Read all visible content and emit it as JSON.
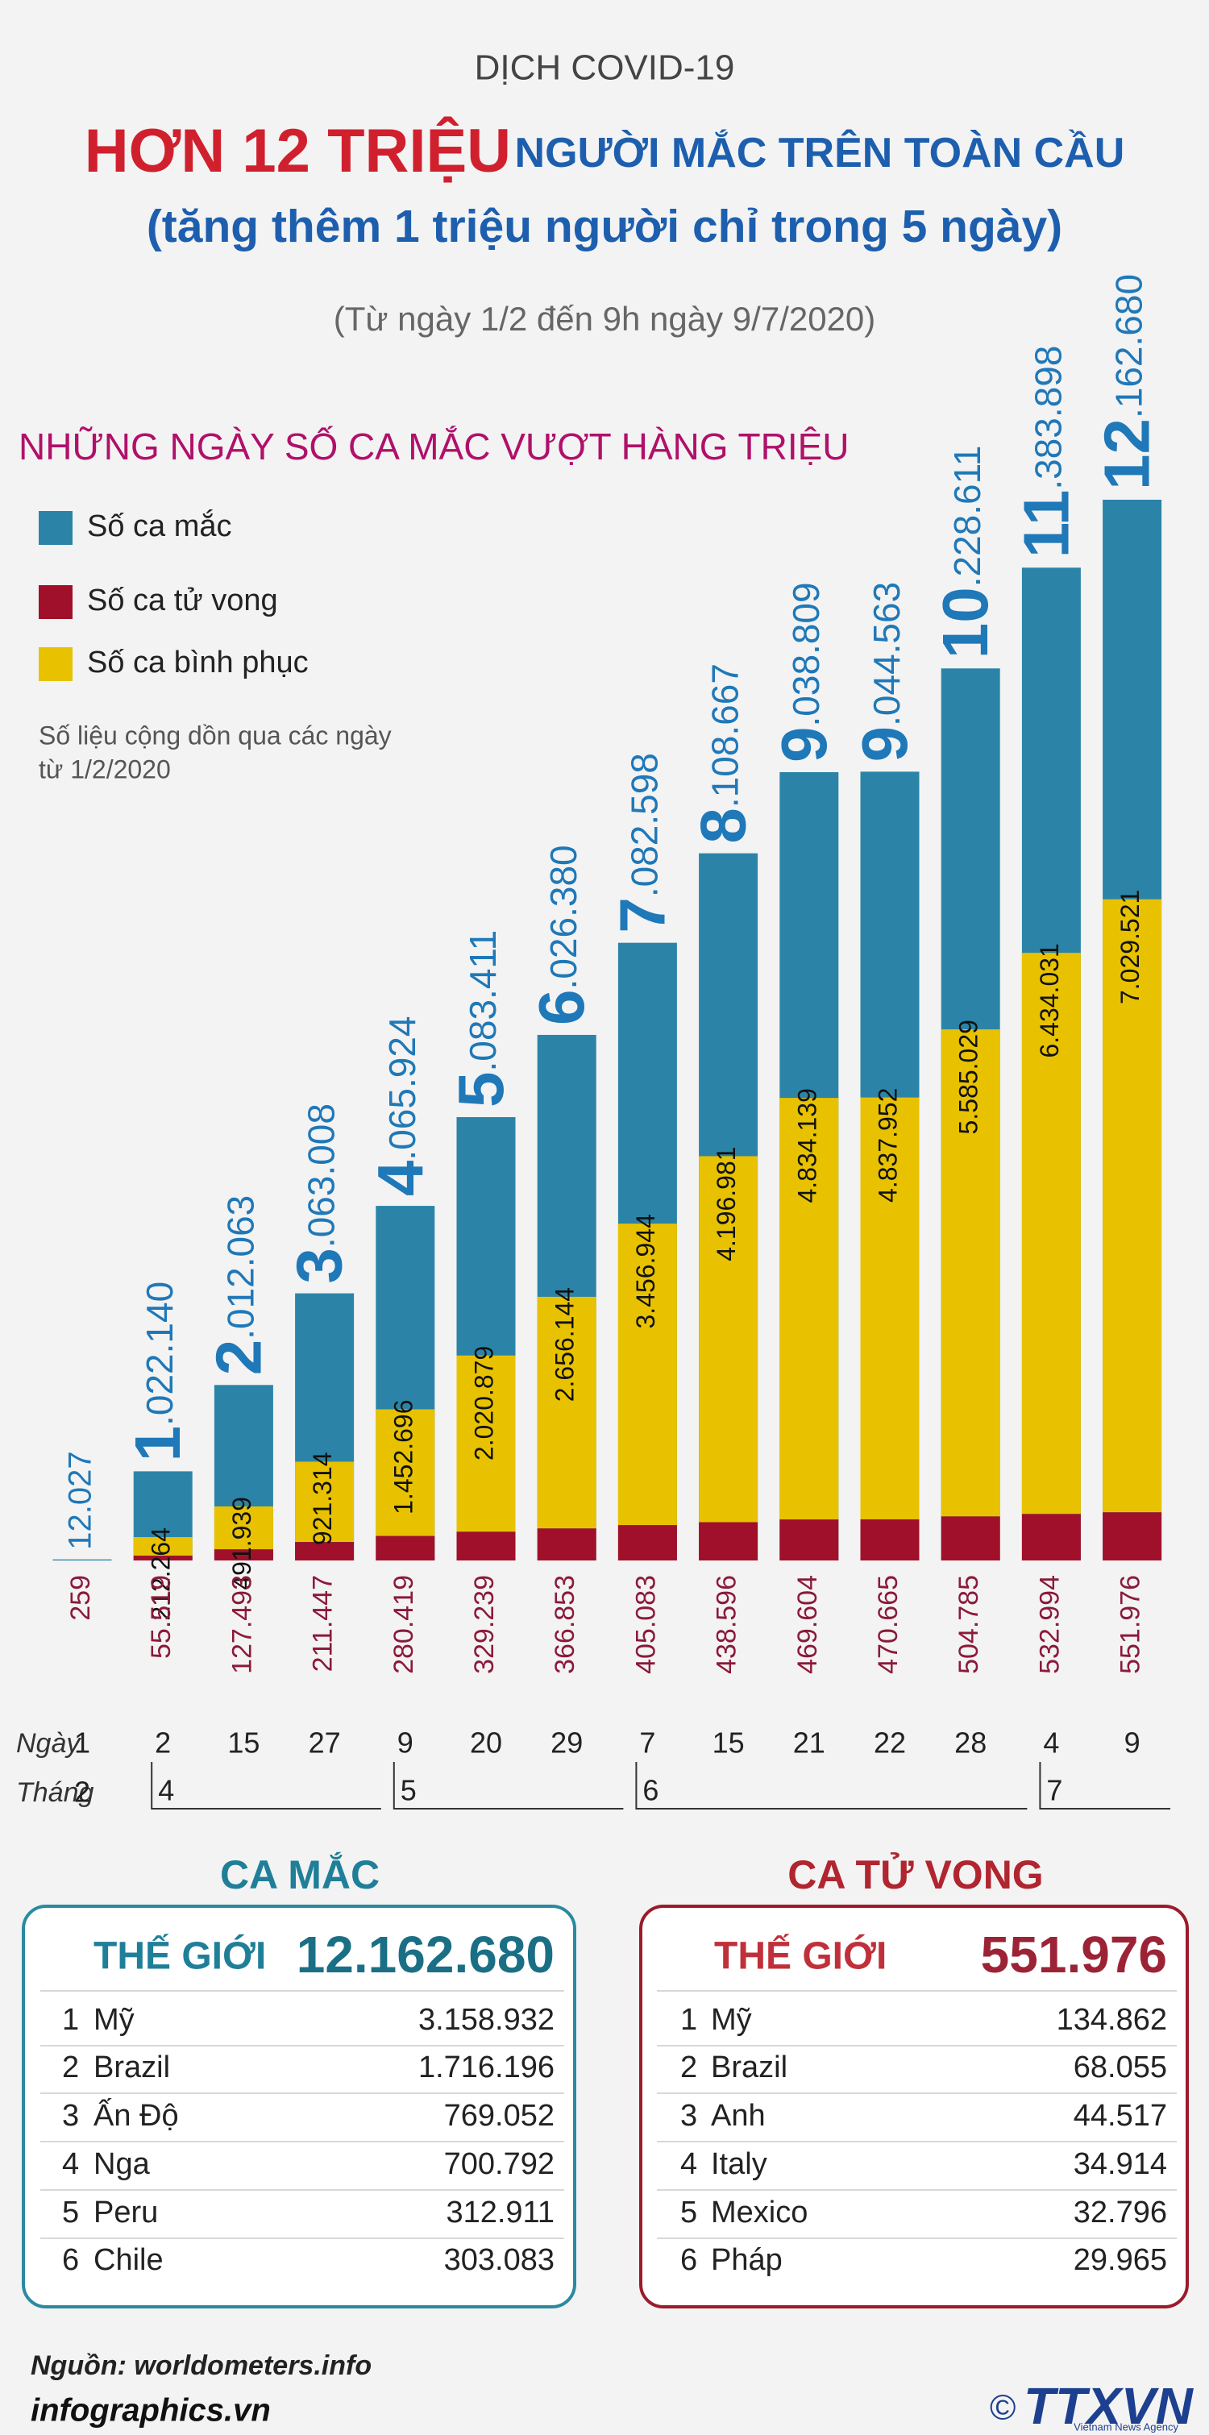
{
  "chart_data": {
    "type": "bar",
    "supertitle": "DỊCH COVID-19",
    "title_highlight": "HƠN 12 TRIỆU",
    "title": "NGƯỜI MẮC TRÊN TOÀN CẦU",
    "subtitle": "(tăng thêm 1 triệu người chỉ trong 5 ngày)",
    "period": "(Từ ngày 1/2 đến 9h ngày 9/7/2020)",
    "section_title": "NHỮNG NGÀY SỐ CA MẮC VƯỢT HÀNG TRIỆU",
    "note": [
      "Số liệu cộng dồn qua các ngày",
      "từ 1/2/2020"
    ],
    "xlabel": "Ngày",
    "month_label": "Tháng",
    "categories": [
      "1",
      "2",
      "15",
      "27",
      "9",
      "20",
      "29",
      "7",
      "15",
      "21",
      "22",
      "28",
      "4",
      "9"
    ],
    "months": [
      "2",
      "4",
      null,
      null,
      "5",
      null,
      null,
      "6",
      null,
      null,
      null,
      null,
      "7",
      null
    ],
    "series": [
      {
        "name": "Số ca mắc",
        "color": "#2b84a8",
        "values": [
          12027,
          1022140,
          2012063,
          3063008,
          4065924,
          5083411,
          6026380,
          7082598,
          8108667,
          9038809,
          9044563,
          10228611,
          11383898,
          12162680
        ],
        "value_labels": [
          "12.027",
          "1.022.140",
          "2.012.063",
          "3.063.008",
          "4.065.924",
          "5.083.411",
          "6.026.380",
          "7.082.598",
          "8.108.667",
          "9.038.809",
          "9.044.563",
          "10.228.611",
          "11.383.898",
          "12.162.680"
        ]
      },
      {
        "name": "Số ca tử vong",
        "color": "#a0102a",
        "values": [
          259,
          55519,
          127493,
          211447,
          280419,
          329239,
          366853,
          405083,
          438596,
          469604,
          470665,
          504785,
          532994,
          551976
        ],
        "value_labels": [
          "259",
          "55.519",
          "127.493",
          "211.447",
          "280.419",
          "329.239",
          "366.853",
          "405.083",
          "438.596",
          "469.604",
          "470.665",
          "504.785",
          "532.994",
          "551.976"
        ]
      },
      {
        "name": "Số ca bình phục",
        "color": "#e8c200",
        "values": [
          null,
          212264,
          491939,
          921314,
          1452696,
          2020879,
          2656144,
          3456944,
          4196981,
          4834139,
          4837952,
          5585029,
          6434031,
          7029521
        ],
        "value_labels": [
          null,
          "212.264",
          "491.939",
          "921.314",
          "1.452.696",
          "2.020.879",
          "2.656.144",
          "3.456.944",
          "4.196.981",
          "4.834.139",
          "4.837.952",
          "5.585.029",
          "6.434.031",
          "7.029.521"
        ]
      }
    ]
  },
  "cases_box": {
    "title": "CA MẮC",
    "world_label": "THẾ GIỚI",
    "world_value": "12.162.680",
    "rows": [
      [
        "1",
        "Mỹ",
        "3.158.932"
      ],
      [
        "2",
        "Brazil",
        "1.716.196"
      ],
      [
        "3",
        "Ấn Độ",
        "769.052"
      ],
      [
        "4",
        "Nga",
        "700.792"
      ],
      [
        "5",
        "Peru",
        "312.911"
      ],
      [
        "6",
        "Chile",
        "303.083"
      ]
    ]
  },
  "deaths_box": {
    "title": "CA TỬ VONG",
    "world_label": "THẾ GIỚI",
    "world_value": "551.976",
    "rows": [
      [
        "1",
        "Mỹ",
        "134.862"
      ],
      [
        "2",
        "Brazil",
        "68.055"
      ],
      [
        "3",
        "Anh",
        "44.517"
      ],
      [
        "4",
        "Italy",
        "34.914"
      ],
      [
        "5",
        "Mexico",
        "32.796"
      ],
      [
        "6",
        "Pháp",
        "29.965"
      ]
    ]
  },
  "footer": {
    "source": "Nguồn: worldometers.info",
    "site": "infographics.vn",
    "copyright": "©",
    "logo": "TTXVN",
    "logo_sub": "Vietnam News Agency"
  }
}
